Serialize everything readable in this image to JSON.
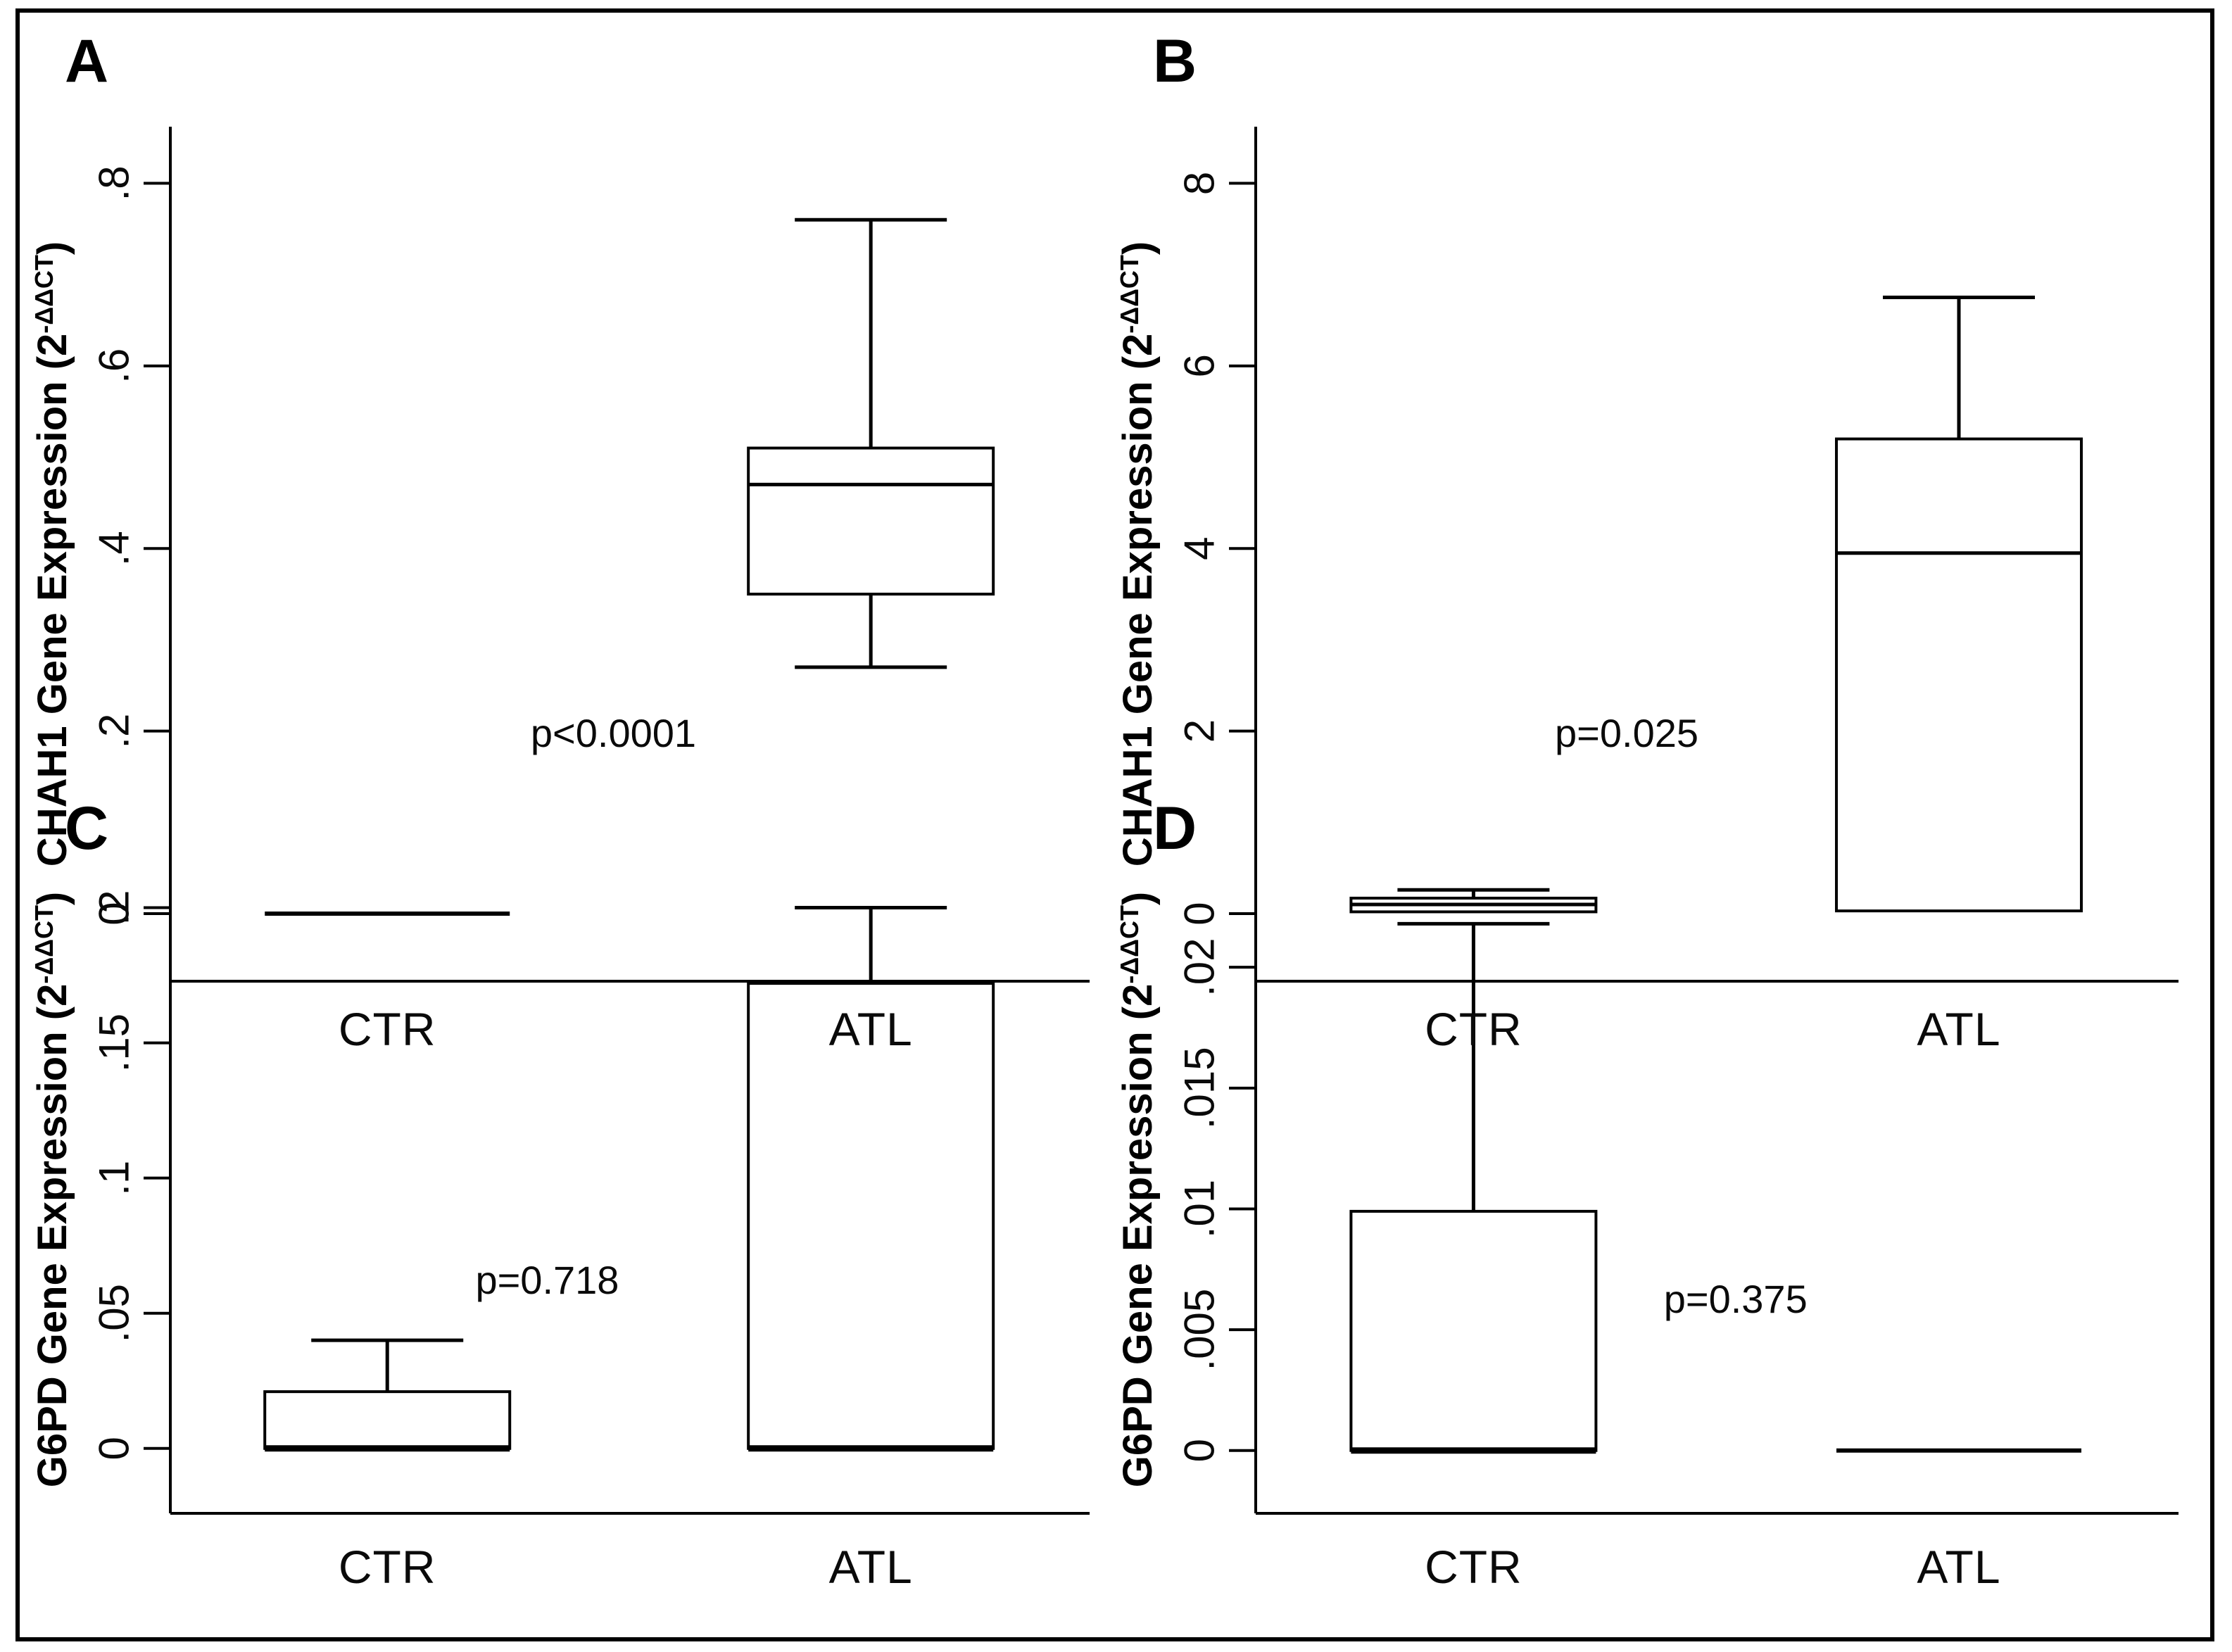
{
  "figure": {
    "background_color": "#ffffff",
    "border_color": "#000000",
    "line_color": "#000000",
    "text_color": "#000000"
  },
  "chart_data": [
    {
      "type": "boxplot",
      "letter": "A",
      "ylabel": {
        "prefix": "CHAH1 Gene Expression (2",
        "sup": "-ΔΔCT",
        "suffix": ")"
      },
      "xlabel": "",
      "categories": [
        "CTR",
        "ATL"
      ],
      "yticks": [
        {
          "value": 0,
          "label": "0"
        },
        {
          "value": 0.2,
          "label": ".2"
        },
        {
          "value": 0.4,
          "label": ".4"
        },
        {
          "value": 0.6,
          "label": ".6"
        },
        {
          "value": 0.8,
          "label": ".8"
        }
      ],
      "ylim": [
        -0.074,
        0.862
      ],
      "p_label": "p<0.0001",
      "boxes": [
        {
          "category": "CTR",
          "type": "flat_line",
          "value": 0
        },
        {
          "category": "ATL",
          "type": "box",
          "whisker_low": 0.27,
          "q1": 0.35,
          "median": 0.47,
          "q3": 0.51,
          "whisker_high": 0.76
        }
      ]
    },
    {
      "type": "boxplot",
      "letter": "B",
      "ylabel": {
        "prefix": "CHAH1 Gene Expression (2",
        "sup": "-ΔΔCT",
        "suffix": ")"
      },
      "xlabel": "",
      "categories": [
        "CTR",
        "ATL"
      ],
      "yticks": [
        {
          "value": 0,
          "label": "0"
        },
        {
          "value": 2,
          "label": "2"
        },
        {
          "value": 4,
          "label": "4"
        },
        {
          "value": 6,
          "label": "6"
        },
        {
          "value": 8,
          "label": "8"
        }
      ],
      "ylim": [
        -0.74,
        8.62
      ],
      "p_label": "p=0.025",
      "boxes": [
        {
          "category": "CTR",
          "type": "box",
          "whisker_low": null,
          "q1": 0.02,
          "median": 0.1,
          "q3": 0.17,
          "whisker_high": 0.26
        },
        {
          "category": "ATL",
          "type": "box",
          "whisker_low": null,
          "q1": 0.03,
          "median": 3.95,
          "q3": 5.2,
          "whisker_high": 6.75
        }
      ]
    },
    {
      "type": "boxplot",
      "letter": "C",
      "ylabel": {
        "prefix": "G6PD Gene Expression (2",
        "sup": "-ΔΔCT",
        "suffix": ")"
      },
      "xlabel": "",
      "categories": [
        "CTR",
        "ATL"
      ],
      "yticks": [
        {
          "value": 0,
          "label": "0"
        },
        {
          "value": 0.05,
          "label": ".05"
        },
        {
          "value": 0.1,
          "label": ".1"
        },
        {
          "value": 0.15,
          "label": ".15"
        },
        {
          "value": 0.2,
          "label": ".2"
        }
      ],
      "ylim": [
        -0.024,
        0.2155
      ],
      "p_label": "p=0.718",
      "boxes": [
        {
          "category": "CTR",
          "type": "box",
          "whisker_low": null,
          "q1": 0,
          "median": 0,
          "q3": 0.021,
          "whisker_high": 0.04
        },
        {
          "category": "ATL",
          "type": "box",
          "whisker_low": null,
          "q1": 0,
          "median": 0,
          "q3": 0.172,
          "whisker_high": 0.2
        }
      ]
    },
    {
      "type": "boxplot",
      "letter": "D",
      "ylabel": {
        "prefix": "G6PD Gene Expression (2",
        "sup": "-ΔΔCT",
        "suffix": ")"
      },
      "xlabel": "",
      "categories": [
        "CTR",
        "ATL"
      ],
      "yticks": [
        {
          "value": 0,
          "label": "0"
        },
        {
          "value": 0.005,
          "label": ".005"
        },
        {
          "value": 0.01,
          "label": ".01"
        },
        {
          "value": 0.015,
          "label": ".015"
        },
        {
          "value": 0.02,
          "label": ".02"
        }
      ],
      "ylim": [
        -0.0026,
        0.0242
      ],
      "p_label": "p=0.375",
      "boxes": [
        {
          "category": "CTR",
          "type": "box",
          "whisker_low": null,
          "q1": 0,
          "median": 0,
          "q3": 0.0099,
          "whisker_high": 0.0218
        },
        {
          "category": "ATL",
          "type": "flat_line",
          "value": 0
        }
      ]
    }
  ]
}
